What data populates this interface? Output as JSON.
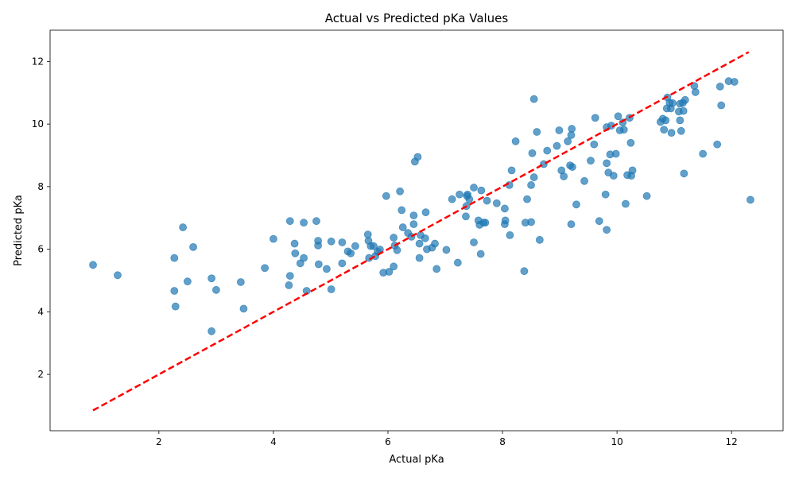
{
  "chart_data": {
    "type": "scatter",
    "title": "Actual vs Predicted pKa Values",
    "xlabel": "Actual pKa",
    "ylabel": "Predicted pKa",
    "xlim": [
      0.1,
      12.9
    ],
    "ylim": [
      0.2,
      13.0
    ],
    "xticks": [
      2,
      4,
      6,
      8,
      10,
      12
    ],
    "yticks": [
      2,
      4,
      6,
      8,
      10,
      12
    ],
    "grid": false,
    "legend": "none",
    "point_color": "#1f77b4",
    "point_opacity": 0.7,
    "reference_line": {
      "from": [
        0.85,
        0.85
      ],
      "to": [
        12.3,
        12.3
      ],
      "color": "#ff0000",
      "style": "dashed"
    },
    "points": [
      [
        0.85,
        5.5
      ],
      [
        1.28,
        5.17
      ],
      [
        2.27,
        5.72
      ],
      [
        2.27,
        4.67
      ],
      [
        2.29,
        4.17
      ],
      [
        2.42,
        6.7
      ],
      [
        2.5,
        4.97
      ],
      [
        2.6,
        6.07
      ],
      [
        2.92,
        3.38
      ],
      [
        2.92,
        5.07
      ],
      [
        3.0,
        4.7
      ],
      [
        3.43,
        4.95
      ],
      [
        3.48,
        4.1
      ],
      [
        3.85,
        5.4
      ],
      [
        4.0,
        6.33
      ],
      [
        4.27,
        4.85
      ],
      [
        4.29,
        5.15
      ],
      [
        4.29,
        6.9
      ],
      [
        4.37,
        6.18
      ],
      [
        4.38,
        5.87
      ],
      [
        4.47,
        5.55
      ],
      [
        4.53,
        6.85
      ],
      [
        4.53,
        5.72
      ],
      [
        4.58,
        4.67
      ],
      [
        4.75,
        6.9
      ],
      [
        4.78,
        6.27
      ],
      [
        4.78,
        6.12
      ],
      [
        4.79,
        5.52
      ],
      [
        4.93,
        5.37
      ],
      [
        5.01,
        4.72
      ],
      [
        5.01,
        6.25
      ],
      [
        5.2,
        6.22
      ],
      [
        5.2,
        5.55
      ],
      [
        5.3,
        5.93
      ],
      [
        5.35,
        5.87
      ],
      [
        5.43,
        6.1
      ],
      [
        5.65,
        6.47
      ],
      [
        5.66,
        6.27
      ],
      [
        5.67,
        5.72
      ],
      [
        5.7,
        6.1
      ],
      [
        5.75,
        6.1
      ],
      [
        5.78,
        5.78
      ],
      [
        5.82,
        5.92
      ],
      [
        5.86,
        5.99
      ],
      [
        5.92,
        5.25
      ],
      [
        5.97,
        7.7
      ],
      [
        6.02,
        5.28
      ],
      [
        6.1,
        5.45
      ],
      [
        6.1,
        6.37
      ],
      [
        6.12,
        6.12
      ],
      [
        6.16,
        5.97
      ],
      [
        6.21,
        7.85
      ],
      [
        6.24,
        7.25
      ],
      [
        6.26,
        6.7
      ],
      [
        6.35,
        6.52
      ],
      [
        6.41,
        6.4
      ],
      [
        6.45,
        6.8
      ],
      [
        6.45,
        7.08
      ],
      [
        6.47,
        8.8
      ],
      [
        6.52,
        8.95
      ],
      [
        6.55,
        6.18
      ],
      [
        6.55,
        5.72
      ],
      [
        6.57,
        6.45
      ],
      [
        6.65,
        6.35
      ],
      [
        6.66,
        7.18
      ],
      [
        6.68,
        6.0
      ],
      [
        6.77,
        6.05
      ],
      [
        6.82,
        6.18
      ],
      [
        6.85,
        5.37
      ],
      [
        7.02,
        5.98
      ],
      [
        7.12,
        7.6
      ],
      [
        7.22,
        5.57
      ],
      [
        7.25,
        7.75
      ],
      [
        7.36,
        7.05
      ],
      [
        7.37,
        7.38
      ],
      [
        7.38,
        7.7
      ],
      [
        7.39,
        7.75
      ],
      [
        7.42,
        7.6
      ],
      [
        7.5,
        6.22
      ],
      [
        7.5,
        7.97
      ],
      [
        7.58,
        6.92
      ],
      [
        7.6,
        6.78
      ],
      [
        7.62,
        5.85
      ],
      [
        7.63,
        7.88
      ],
      [
        7.67,
        6.85
      ],
      [
        7.7,
        6.85
      ],
      [
        7.73,
        7.55
      ],
      [
        7.9,
        7.47
      ],
      [
        8.04,
        6.8
      ],
      [
        8.04,
        7.3
      ],
      [
        8.05,
        6.92
      ],
      [
        8.12,
        8.05
      ],
      [
        8.13,
        6.45
      ],
      [
        8.16,
        8.52
      ],
      [
        8.23,
        9.45
      ],
      [
        8.38,
        5.3
      ],
      [
        8.4,
        6.85
      ],
      [
        8.43,
        7.6
      ],
      [
        8.5,
        8.05
      ],
      [
        8.5,
        6.87
      ],
      [
        8.52,
        9.07
      ],
      [
        8.55,
        10.8
      ],
      [
        8.55,
        8.3
      ],
      [
        8.6,
        9.75
      ],
      [
        8.65,
        6.3
      ],
      [
        8.72,
        8.72
      ],
      [
        8.78,
        9.15
      ],
      [
        8.95,
        9.3
      ],
      [
        8.99,
        9.8
      ],
      [
        9.03,
        8.52
      ],
      [
        9.07,
        8.33
      ],
      [
        9.14,
        9.45
      ],
      [
        9.18,
        8.68
      ],
      [
        9.2,
        6.8
      ],
      [
        9.2,
        9.65
      ],
      [
        9.21,
        9.85
      ],
      [
        9.22,
        8.63
      ],
      [
        9.29,
        7.43
      ],
      [
        9.43,
        8.18
      ],
      [
        9.54,
        8.83
      ],
      [
        9.6,
        9.35
      ],
      [
        9.62,
        10.2
      ],
      [
        9.69,
        6.9
      ],
      [
        9.8,
        7.75
      ],
      [
        9.82,
        6.62
      ],
      [
        9.82,
        8.75
      ],
      [
        9.82,
        9.9
      ],
      [
        9.85,
        8.45
      ],
      [
        9.88,
        9.03
      ],
      [
        9.9,
        9.95
      ],
      [
        9.94,
        8.35
      ],
      [
        9.98,
        9.05
      ],
      [
        10.02,
        10.25
      ],
      [
        10.05,
        9.8
      ],
      [
        10.1,
        10.05
      ],
      [
        10.12,
        9.82
      ],
      [
        10.15,
        7.45
      ],
      [
        10.18,
        8.37
      ],
      [
        10.22,
        10.2
      ],
      [
        10.24,
        9.4
      ],
      [
        10.25,
        8.35
      ],
      [
        10.27,
        8.52
      ],
      [
        10.52,
        7.7
      ],
      [
        10.76,
        10.07
      ],
      [
        10.8,
        10.17
      ],
      [
        10.82,
        9.82
      ],
      [
        10.85,
        10.12
      ],
      [
        10.87,
        10.5
      ],
      [
        10.88,
        10.85
      ],
      [
        10.92,
        10.68
      ],
      [
        10.94,
        10.5
      ],
      [
        10.95,
        9.72
      ],
      [
        10.97,
        10.67
      ],
      [
        11.08,
        10.4
      ],
      [
        11.1,
        10.12
      ],
      [
        11.1,
        10.65
      ],
      [
        11.12,
        9.78
      ],
      [
        11.15,
        10.68
      ],
      [
        11.16,
        10.42
      ],
      [
        11.17,
        8.42
      ],
      [
        11.19,
        10.77
      ],
      [
        11.35,
        11.22
      ],
      [
        11.37,
        11.02
      ],
      [
        11.5,
        9.05
      ],
      [
        11.75,
        9.35
      ],
      [
        11.8,
        11.2
      ],
      [
        11.82,
        10.6
      ],
      [
        11.95,
        11.37
      ],
      [
        12.05,
        11.35
      ],
      [
        12.33,
        7.58
      ]
    ]
  }
}
